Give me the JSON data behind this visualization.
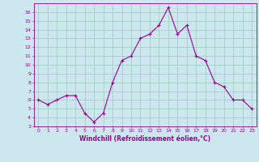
{
  "x": [
    0,
    1,
    2,
    3,
    4,
    5,
    6,
    7,
    8,
    9,
    10,
    11,
    12,
    13,
    14,
    15,
    16,
    17,
    18,
    19,
    20,
    21,
    22,
    23
  ],
  "y": [
    6,
    5.5,
    6,
    6.5,
    6.5,
    4.5,
    3.5,
    4.5,
    8,
    10.5,
    11,
    13,
    13.5,
    14.5,
    16.5,
    13.5,
    14.5,
    11,
    10.5,
    8,
    7.5,
    6,
    6,
    5
  ],
  "line_color": "#990099",
  "marker": "+",
  "bg_color": "#cce8ee",
  "grid_color": "#99ccbb",
  "xlabel": "Windchill (Refroidissement éolien,°C)",
  "xlabel_color": "#990099",
  "tick_color": "#990099",
  "ylim": [
    3,
    17
  ],
  "yticks": [
    3,
    4,
    5,
    6,
    7,
    8,
    9,
    10,
    11,
    12,
    13,
    14,
    15,
    16
  ],
  "xticks": [
    0,
    1,
    2,
    3,
    4,
    5,
    6,
    7,
    8,
    9,
    10,
    11,
    12,
    13,
    14,
    15,
    16,
    17,
    18,
    19,
    20,
    21,
    22,
    23
  ],
  "spine_color": "#990099",
  "figsize": [
    3.2,
    2.0
  ],
  "dpi": 100
}
